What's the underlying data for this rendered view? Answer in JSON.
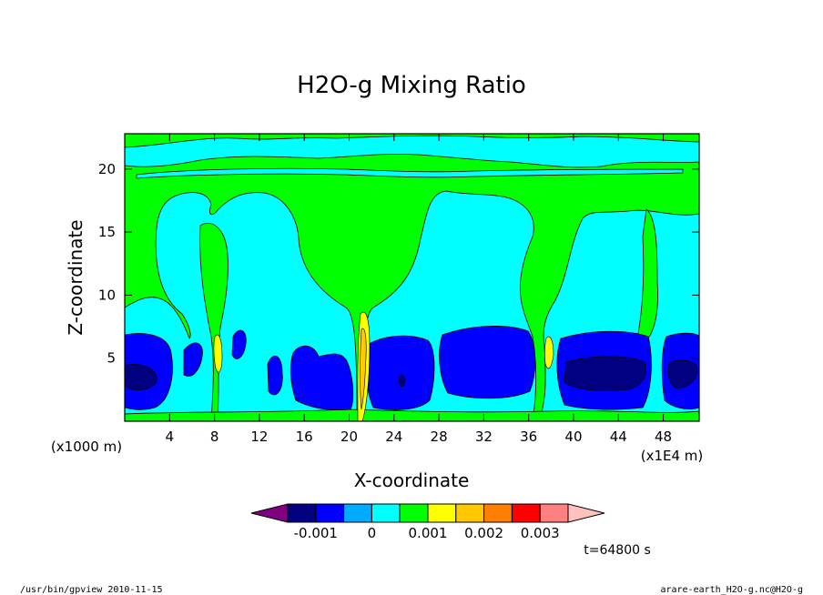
{
  "chart_data": {
    "type": "heatmap",
    "title": "H2O-g Mixing Ratio",
    "xlabel": "X-coordinate",
    "ylabel": "Z-coordinate",
    "x_unit_left": "(x1000 m)",
    "x_unit_right": "(x1E4 m)",
    "x_ticks": [
      "4",
      "8",
      "12",
      "16",
      "20",
      "24",
      "28",
      "32",
      "36",
      "40",
      "44",
      "48"
    ],
    "x_tick_values": [
      4,
      8,
      12,
      16,
      20,
      24,
      28,
      32,
      36,
      40,
      44,
      48
    ],
    "y_ticks": [
      "5",
      "10",
      "15",
      "20"
    ],
    "y_tick_values": [
      5,
      10,
      15,
      20
    ],
    "xlim": [
      0,
      51.2
    ],
    "ylim": [
      0,
      22.8
    ],
    "colorbar": {
      "colors": [
        "#800080",
        "#000080",
        "#0000ff",
        "#00aaff",
        "#00ffff",
        "#00ff00",
        "#ffff00",
        "#ffc800",
        "#ff8000",
        "#ff0000",
        "#ff8080",
        "#ffc0c0"
      ],
      "labels": [
        "-0.001",
        "0",
        "0.001",
        "0.002",
        "0.003"
      ],
      "label_values": [
        -0.001,
        0,
        0.001,
        0.002,
        0.003
      ]
    },
    "level_colors": {
      "dark_blue": "#000080",
      "blue": "#0000ff",
      "cyan": "#00ffff",
      "green": "#00ff00",
      "yellow": "#ffff00",
      "orange": "#ffc800"
    }
  },
  "time_label": "t=64800 s",
  "footer_left": "/usr/bin/gpview  2010-11-15",
  "footer_right": "arare-earth_H2O-g.nc@H2O-g"
}
